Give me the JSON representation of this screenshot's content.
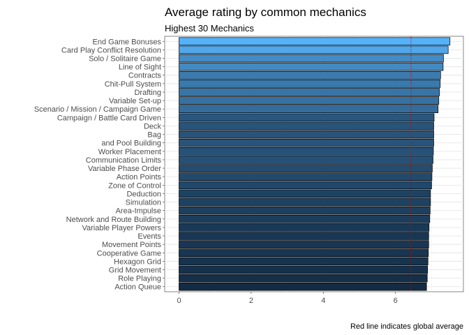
{
  "chart_data": {
    "type": "bar",
    "orientation": "horizontal",
    "title": "Average rating by common mechanics",
    "subtitle": "Highest 30 Mechanics",
    "caption": "Red line indicates global average",
    "xlabel": "",
    "ylabel": "",
    "xlim": [
      0,
      7.8
    ],
    "xticks": [
      "0",
      "2",
      "4",
      "6"
    ],
    "grid": true,
    "reference_line": {
      "value": 6.43,
      "color": "#cc0000"
    },
    "color_low": "#132b43",
    "color_high": "#56b1f7",
    "categories": [
      "End Game Bonuses",
      "Card Play Conflict Resolution",
      "Solo / Solitaire Game",
      "Line of Sight",
      "Contracts",
      "Chit-Pull System",
      "Drafting",
      "Variable Set-up",
      "Scenario / Mission / Campaign Game",
      "Campaign / Battle Card Driven",
      "Deck",
      "Bag",
      "and Pool Building",
      "Worker Placement",
      "Communication Limits",
      "Variable Phase Order",
      "Action Points",
      "Zone of Control",
      "Deduction",
      "Simulation",
      "Area-Impulse",
      "Network and Route Building",
      "Variable Player Powers",
      "Events",
      "Movement Points",
      "Cooperative Game",
      "Hexagon Grid",
      "Grid Movement",
      "Role Playing",
      "Action Queue"
    ],
    "values": [
      7.51,
      7.46,
      7.33,
      7.32,
      7.25,
      7.24,
      7.22,
      7.2,
      7.18,
      7.07,
      7.06,
      7.06,
      7.06,
      7.05,
      7.04,
      7.02,
      7.01,
      7.0,
      6.97,
      6.97,
      6.96,
      6.95,
      6.93,
      6.92,
      6.92,
      6.91,
      6.9,
      6.89,
      6.88,
      6.86
    ]
  }
}
